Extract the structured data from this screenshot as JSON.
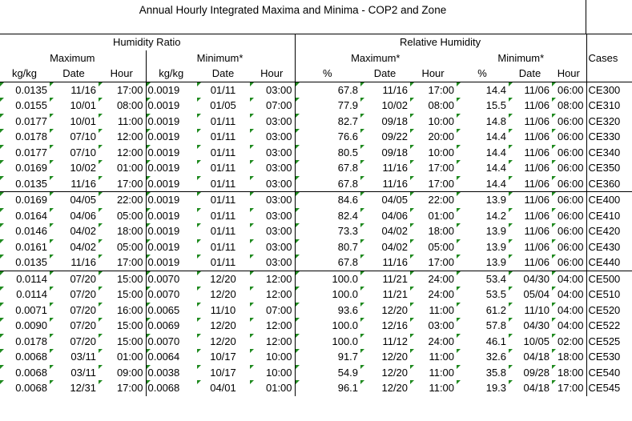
{
  "title": "Annual Hourly Integrated Maxima and Minima - COP2 and Zone",
  "groups": {
    "humidity_ratio": "Humidity Ratio",
    "relative_humidity": "Relative Humidity"
  },
  "subgroups": {
    "maximum": "Maximum",
    "minimum": "Minimum*",
    "maximum_rh": "Maximum*",
    "minimum_rh": "Minimum*"
  },
  "cases_header": "Cases",
  "units": {
    "kgkg": "kg/kg",
    "date": "Date",
    "hour": "Hour",
    "pct": "%"
  },
  "rows": [
    [
      "0.0135",
      "11/16",
      "17:00",
      "0.0019",
      "01/11",
      "03:00",
      "67.8",
      "11/16",
      "17:00",
      "14.4",
      "11/06",
      "06:00",
      "CE300"
    ],
    [
      "0.0155",
      "10/01",
      "08:00",
      "0.0019",
      "01/05",
      "07:00",
      "77.9",
      "10/02",
      "08:00",
      "15.5",
      "11/06",
      "08:00",
      "CE310"
    ],
    [
      "0.0177",
      "10/01",
      "11:00",
      "0.0019",
      "01/11",
      "03:00",
      "82.7",
      "09/18",
      "10:00",
      "14.8",
      "11/06",
      "06:00",
      "CE320"
    ],
    [
      "0.0178",
      "07/10",
      "12:00",
      "0.0019",
      "01/11",
      "03:00",
      "76.6",
      "09/22",
      "20:00",
      "14.4",
      "11/06",
      "06:00",
      "CE330"
    ],
    [
      "0.0177",
      "07/10",
      "12:00",
      "0.0019",
      "01/11",
      "03:00",
      "80.5",
      "09/18",
      "10:00",
      "14.4",
      "11/06",
      "06:00",
      "CE340"
    ],
    [
      "0.0169",
      "10/02",
      "01:00",
      "0.0019",
      "01/11",
      "03:00",
      "67.8",
      "11/16",
      "17:00",
      "14.4",
      "11/06",
      "06:00",
      "CE350"
    ],
    [
      "0.0135",
      "11/16",
      "17:00",
      "0.0019",
      "01/11",
      "03:00",
      "67.8",
      "11/16",
      "17:00",
      "14.4",
      "11/06",
      "06:00",
      "CE360"
    ],
    [
      "0.0169",
      "04/05",
      "22:00",
      "0.0019",
      "01/11",
      "03:00",
      "84.6",
      "04/05",
      "22:00",
      "13.9",
      "11/06",
      "06:00",
      "CE400"
    ],
    [
      "0.0164",
      "04/06",
      "05:00",
      "0.0019",
      "01/11",
      "03:00",
      "82.4",
      "04/06",
      "01:00",
      "14.2",
      "11/06",
      "06:00",
      "CE410"
    ],
    [
      "0.0146",
      "04/02",
      "18:00",
      "0.0019",
      "01/11",
      "03:00",
      "73.3",
      "04/02",
      "18:00",
      "13.9",
      "11/06",
      "06:00",
      "CE420"
    ],
    [
      "0.0161",
      "04/02",
      "05:00",
      "0.0019",
      "01/11",
      "03:00",
      "80.7",
      "04/02",
      "05:00",
      "13.9",
      "11/06",
      "06:00",
      "CE430"
    ],
    [
      "0.0135",
      "11/16",
      "17:00",
      "0.0019",
      "01/11",
      "03:00",
      "67.8",
      "11/16",
      "17:00",
      "13.9",
      "11/06",
      "06:00",
      "CE440"
    ],
    [
      "0.0114",
      "07/20",
      "15:00",
      "0.0070",
      "12/20",
      "12:00",
      "100.0",
      "11/21",
      "24:00",
      "53.4",
      "04/30",
      "04:00",
      "CE500"
    ],
    [
      "0.0114",
      "07/20",
      "15:00",
      "0.0070",
      "12/20",
      "12:00",
      "100.0",
      "11/21",
      "24:00",
      "53.5",
      "05/04",
      "04:00",
      "CE510"
    ],
    [
      "0.0071",
      "07/20",
      "16:00",
      "0.0065",
      "11/10",
      "07:00",
      "93.6",
      "12/20",
      "11:00",
      "61.2",
      "11/10",
      "04:00",
      "CE520"
    ],
    [
      "0.0090",
      "07/20",
      "15:00",
      "0.0069",
      "12/20",
      "12:00",
      "100.0",
      "12/16",
      "03:00",
      "57.8",
      "04/30",
      "04:00",
      "CE522"
    ],
    [
      "0.0178",
      "07/20",
      "15:00",
      "0.0070",
      "12/20",
      "12:00",
      "100.0",
      "11/12",
      "24:00",
      "46.1",
      "10/05",
      "02:00",
      "CE525"
    ],
    [
      "0.0068",
      "03/11",
      "01:00",
      "0.0064",
      "10/17",
      "10:00",
      "91.7",
      "12/20",
      "11:00",
      "32.6",
      "04/18",
      "18:00",
      "CE530"
    ],
    [
      "0.0068",
      "03/11",
      "09:00",
      "0.0038",
      "10/17",
      "10:00",
      "54.9",
      "12/20",
      "11:00",
      "35.8",
      "09/28",
      "18:00",
      "CE540"
    ],
    [
      "0.0068",
      "12/31",
      "17:00",
      "0.0068",
      "04/01",
      "01:00",
      "96.1",
      "12/20",
      "11:00",
      "19.3",
      "04/18",
      "17:00",
      "CE545"
    ]
  ]
}
